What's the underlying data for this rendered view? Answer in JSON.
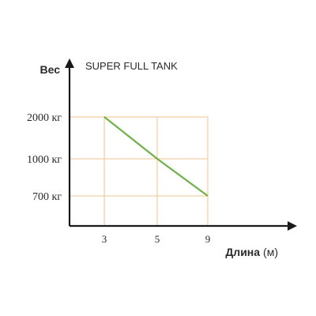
{
  "chart_data": {
    "type": "line",
    "title": "SUPER FULL TANK",
    "ylabel": "Вес",
    "xlabel": "Длина",
    "xlabel_unit": "(м)",
    "x": [
      3,
      5,
      9
    ],
    "x_tick_labels": [
      "3",
      "5",
      "9"
    ],
    "y_ticks": [
      2000,
      1000,
      700
    ],
    "y_tick_labels": [
      "2000 кг",
      "1000 кг",
      "700 кг"
    ],
    "series": [
      {
        "name": "SUPER FULL TANK",
        "values": [
          2000,
          1000,
          700
        ]
      }
    ],
    "colors": {
      "line": "#6fb04a",
      "guides": "#f3c28c",
      "axes": "#1a1a1a"
    },
    "grid": false
  }
}
